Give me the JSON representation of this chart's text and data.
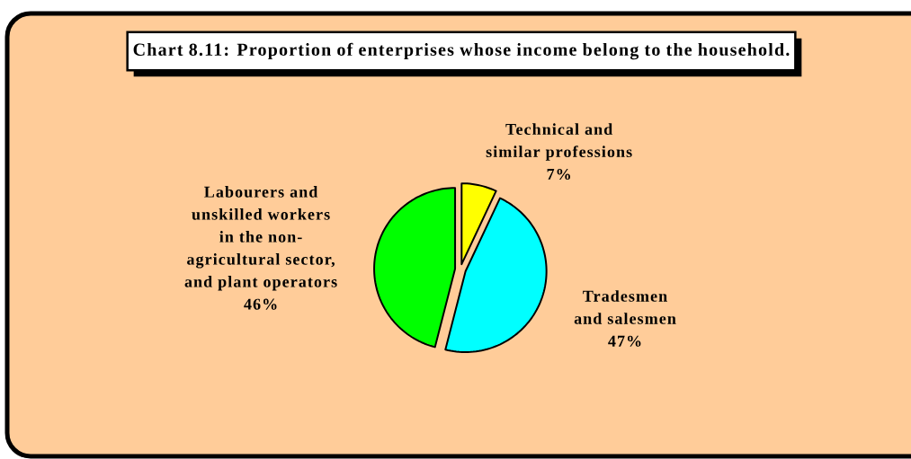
{
  "chart_data": {
    "type": "pie",
    "title": "Chart 8.11: Proportion of enterprises whose income belong to the household.",
    "categories": [
      "Technical and similar professions",
      "Tradesmen and salesmen",
      "Labourers and unskilled workers in the non-agricultural sector, and plant operators"
    ],
    "values": [
      7,
      47,
      46
    ],
    "value_labels": [
      "7%",
      "47%",
      "46%"
    ],
    "colors": [
      "#ffff00",
      "#00ffff",
      "#00ff00"
    ]
  }
}
